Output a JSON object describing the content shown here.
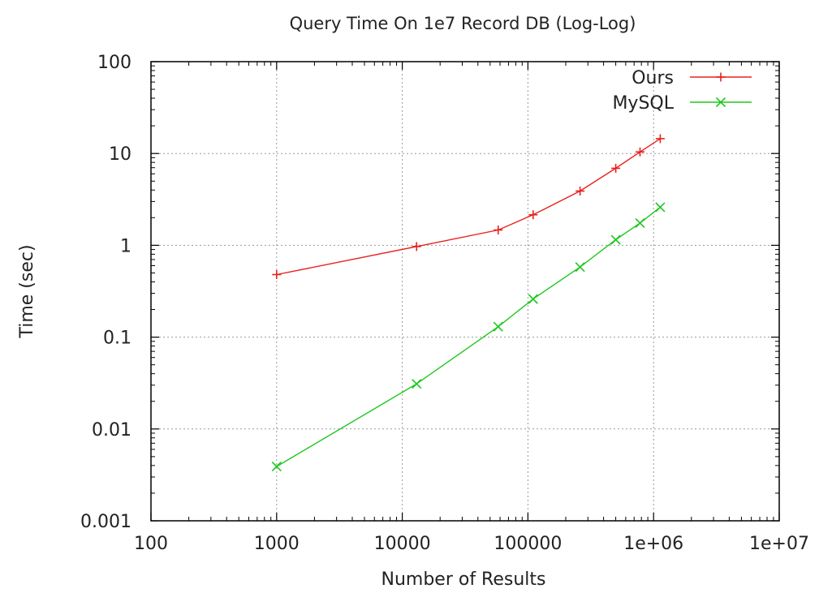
{
  "chart_data": {
    "type": "line",
    "title": "Query Time On 1e7 Record DB (Log-Log)",
    "xlabel": "Number of Results",
    "ylabel": "Time (sec)",
    "xscale": "log",
    "yscale": "log",
    "xlim": [
      100,
      10000000
    ],
    "ylim": [
      0.001,
      100
    ],
    "grid": true,
    "legend_position": "top-right",
    "x_ticks": [
      {
        "value": 100,
        "label": "100"
      },
      {
        "value": 1000,
        "label": "1000"
      },
      {
        "value": 10000,
        "label": "10000"
      },
      {
        "value": 100000,
        "label": "100000"
      },
      {
        "value": 1000000,
        "label": "1e+06"
      },
      {
        "value": 10000000,
        "label": "1e+07"
      }
    ],
    "y_ticks": [
      {
        "value": 0.001,
        "label": "0.001"
      },
      {
        "value": 0.01,
        "label": "0.01"
      },
      {
        "value": 0.1,
        "label": "0.1"
      },
      {
        "value": 1,
        "label": "1"
      },
      {
        "value": 10,
        "label": "10"
      },
      {
        "value": 100,
        "label": "100"
      }
    ],
    "series": [
      {
        "name": "Ours",
        "color": "#e8211d",
        "marker": "plus",
        "points": [
          [
            1000,
            0.48
          ],
          [
            13000,
            0.97
          ],
          [
            58000,
            1.47
          ],
          [
            110000,
            2.15
          ],
          [
            260000,
            3.9
          ],
          [
            500000,
            6.9
          ],
          [
            780000,
            10.4
          ],
          [
            1130000,
            14.5
          ]
        ]
      },
      {
        "name": "MySQL",
        "color": "#1ec71e",
        "marker": "cross",
        "points": [
          [
            1000,
            0.0039
          ],
          [
            13000,
            0.031
          ],
          [
            58000,
            0.13
          ],
          [
            110000,
            0.26
          ],
          [
            260000,
            0.58
          ],
          [
            500000,
            1.15
          ],
          [
            780000,
            1.75
          ],
          [
            1130000,
            2.6
          ]
        ]
      }
    ]
  }
}
